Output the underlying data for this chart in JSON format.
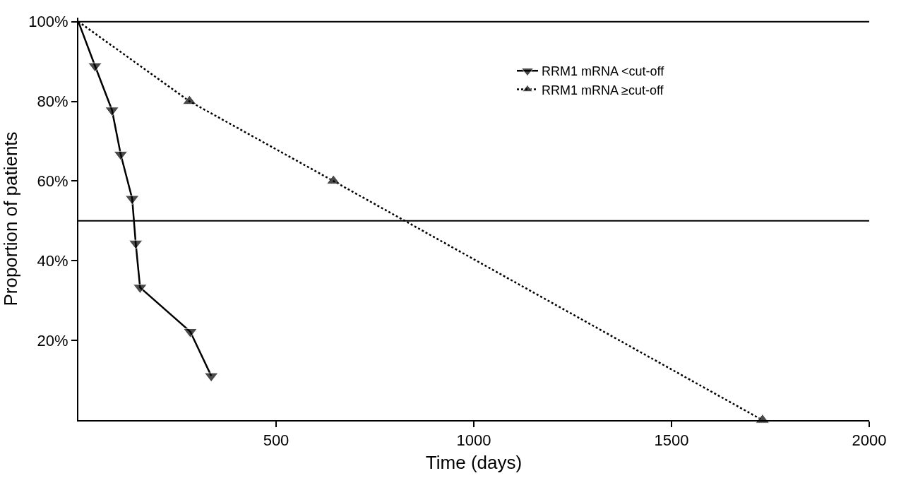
{
  "chart_data": {
    "type": "line",
    "xlabel": "Time (days)",
    "ylabel": "Proportion of patients",
    "series": [
      {
        "name": "RRM1 mRNA <cut-off",
        "color": "#000000",
        "line_style": "solid",
        "marker": "triangle-down",
        "x": [
          0,
          42,
          85,
          107,
          136,
          145,
          156,
          283,
          336
        ],
        "values": [
          100,
          88.9,
          77.8,
          66.7,
          55.6,
          44.4,
          33.3,
          22.2,
          11.1
        ]
      },
      {
        "name": "RRM1 mRNA ≥cut-off",
        "color": "#000000",
        "line_style": "dotted",
        "marker": "triangle-up",
        "x": [
          0,
          281,
          645,
          1730
        ],
        "values": [
          100,
          80,
          60,
          0
        ]
      }
    ],
    "xlim": [
      0,
      2000
    ],
    "ylim": [
      0,
      101
    ],
    "xticks": [
      500,
      1000,
      1500,
      2000
    ],
    "yticks": [
      {
        "value": 20,
        "label": "20%"
      },
      {
        "value": 40,
        "label": "40%"
      },
      {
        "value": 60,
        "label": "60%"
      },
      {
        "value": 80,
        "label": "80%"
      },
      {
        "value": 100,
        "label": "100%"
      }
    ],
    "ref_lines": [
      {
        "axis": "y",
        "value": 100,
        "label": null,
        "color": "#000000"
      },
      {
        "axis": "y",
        "value": 50,
        "label": null,
        "color": "#000000"
      }
    ],
    "legend": "top right"
  }
}
